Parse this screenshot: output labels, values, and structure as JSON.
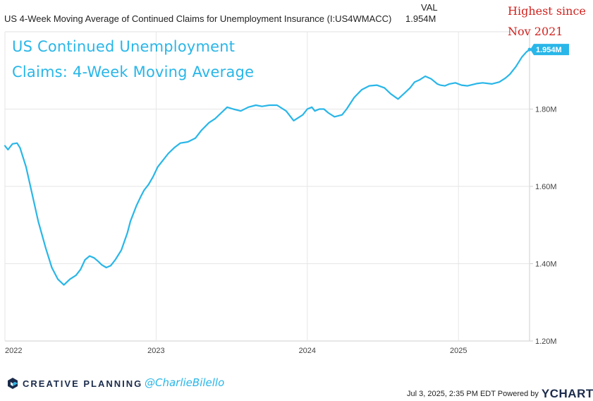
{
  "header": {
    "title": "US 4-Week Moving Average of Continued Claims for Unemployment Insurance (I:US4WMACC)",
    "val_heading": "VAL",
    "val_value": "1.954M"
  },
  "annotation": {
    "line1": "Highest since",
    "line2": "Nov 2021",
    "color": "#d0231f"
  },
  "overlay_title": {
    "line1": "US Continued Unemployment",
    "line2": "Claims: 4-Week Moving Average"
  },
  "footer": {
    "brand": "CREATIVE PLANNING",
    "handle": "@CharlieBilello",
    "timestamp": "Jul 3, 2025, 2:35 PM EDT Powered by",
    "ycharts": "YCHARTS"
  },
  "chart_data": {
    "type": "line",
    "line_color": "#29b6e8",
    "x_unit": "year (decimal)",
    "xlim": [
      2022.0,
      2025.47
    ],
    "ylim": [
      1.2,
      2.0
    ],
    "y_unit": "millions",
    "x_ticks": [
      {
        "value": 2022,
        "label": "2022"
      },
      {
        "value": 2023,
        "label": "2023"
      },
      {
        "value": 2024,
        "label": "2024"
      },
      {
        "value": 2025,
        "label": "2025"
      }
    ],
    "y_ticks": [
      {
        "value": 1.2,
        "label": "1.20M"
      },
      {
        "value": 1.4,
        "label": "1.40M"
      },
      {
        "value": 1.6,
        "label": "1.60M"
      },
      {
        "value": 1.8,
        "label": "1.80M"
      }
    ],
    "last_value_label": "1.954M",
    "grid": true,
    "series": [
      {
        "x": [
          2022.0,
          2022.02,
          2022.05,
          2022.08,
          2022.1,
          2022.14,
          2022.18,
          2022.22,
          2022.27,
          2022.31,
          2022.35,
          2022.39,
          2022.43,
          2022.47,
          2022.5,
          2022.53,
          2022.56,
          2022.59,
          2022.62,
          2022.64,
          2022.67,
          2022.7,
          2022.73,
          2022.77,
          2022.81,
          2022.83,
          2022.87,
          2022.9,
          2022.92,
          2022.95,
          2022.98,
          2023.01,
          2023.04,
          2023.08,
          2023.12,
          2023.16,
          2023.21,
          2023.26,
          2023.3,
          2023.35,
          2023.39,
          2023.43,
          2023.47,
          2023.51,
          2023.56,
          2023.61,
          2023.66,
          2023.7,
          2023.75,
          2023.8,
          2023.86,
          2023.91,
          2023.97,
          2024.0,
          2024.03,
          2024.05,
          2024.08,
          2024.11,
          2024.14,
          2024.18,
          2024.23,
          2024.26,
          2024.31,
          2024.36,
          2024.41,
          2024.46,
          2024.51,
          2024.55,
          2024.6,
          2024.64,
          2024.68,
          2024.71,
          2024.74,
          2024.78,
          2024.82,
          2024.86,
          2024.88,
          2024.91,
          2024.94,
          2024.98,
          2025.02,
          2025.06,
          2025.12,
          2025.16,
          2025.22,
          2025.27,
          2025.31,
          2025.34,
          2025.38,
          2025.42,
          2025.45,
          2025.47
        ],
        "y": [
          1.705,
          1.695,
          1.71,
          1.712,
          1.7,
          1.65,
          1.58,
          1.51,
          1.44,
          1.39,
          1.36,
          1.345,
          1.36,
          1.37,
          1.385,
          1.41,
          1.42,
          1.415,
          1.405,
          1.397,
          1.39,
          1.395,
          1.41,
          1.435,
          1.48,
          1.51,
          1.55,
          1.575,
          1.59,
          1.605,
          1.625,
          1.65,
          1.665,
          1.685,
          1.7,
          1.712,
          1.715,
          1.725,
          1.745,
          1.765,
          1.775,
          1.79,
          1.805,
          1.8,
          1.795,
          1.805,
          1.81,
          1.807,
          1.81,
          1.81,
          1.795,
          1.77,
          1.785,
          1.8,
          1.805,
          1.795,
          1.8,
          1.8,
          1.79,
          1.78,
          1.785,
          1.8,
          1.83,
          1.85,
          1.86,
          1.862,
          1.855,
          1.84,
          1.826,
          1.84,
          1.855,
          1.87,
          1.875,
          1.885,
          1.878,
          1.865,
          1.862,
          1.86,
          1.865,
          1.868,
          1.862,
          1.86,
          1.866,
          1.868,
          1.865,
          1.87,
          1.88,
          1.89,
          1.91,
          1.935,
          1.948,
          1.954
        ]
      }
    ]
  }
}
